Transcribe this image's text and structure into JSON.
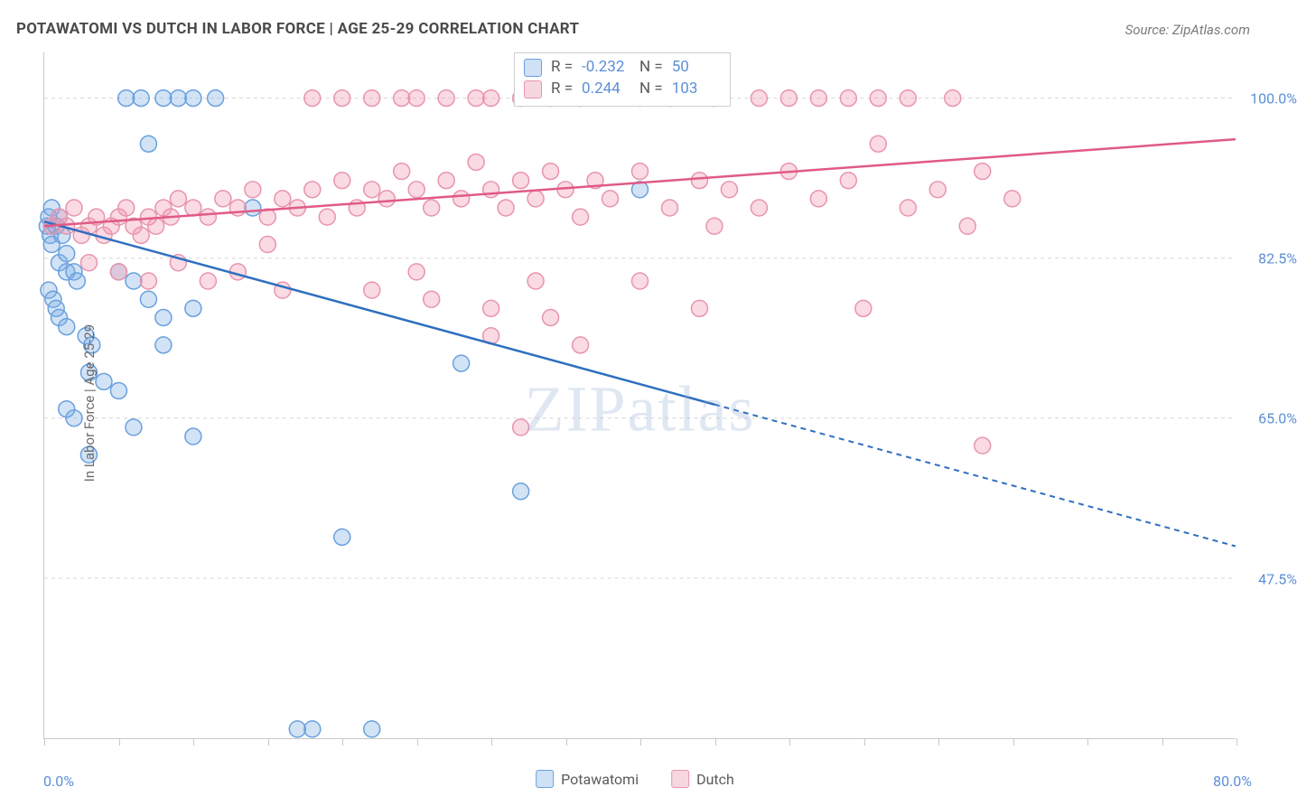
{
  "title": "POTAWATOMI VS DUTCH IN LABOR FORCE | AGE 25-29 CORRELATION CHART",
  "source": "Source: ZipAtlas.com",
  "ylabel": "In Labor Force | Age 25-29",
  "watermark": "ZIPatlas",
  "chart": {
    "type": "scatter",
    "xlim": [
      0,
      80
    ],
    "ylim": [
      30,
      105
    ],
    "x_ticks": [
      0,
      5,
      10,
      15,
      20,
      25,
      30,
      35,
      40,
      45,
      50,
      55,
      60,
      65,
      70,
      75,
      80
    ],
    "y_gridlines": [
      47.5,
      65.0,
      82.5,
      100.0
    ],
    "y_tick_labels": [
      "47.5%",
      "65.0%",
      "82.5%",
      "100.0%"
    ],
    "xmin_label": "0.0%",
    "xmax_label": "80.0%",
    "background_color": "#ffffff",
    "grid_color": "#d6d6d6",
    "series": [
      {
        "name": "Potawatomi",
        "color_fill": "rgba(127,175,230,0.35)",
        "color_stroke": "#6aa0dd",
        "swatch_fill": "#cfe1f5",
        "swatch_border": "#6aa0dd",
        "line_color": "#2f6fc0",
        "r_value": "-0.232",
        "n_value": "50",
        "trend": {
          "x1": 0,
          "y1": 86.5,
          "x2_solid": 45,
          "y2_solid": 66.5,
          "x2": 80,
          "y2": 51.0
        },
        "marker_radius": 9,
        "points": [
          [
            0.2,
            86
          ],
          [
            0.3,
            87
          ],
          [
            0.4,
            85
          ],
          [
            0.5,
            88
          ],
          [
            0.5,
            84
          ],
          [
            0.8,
            86
          ],
          [
            1.0,
            87
          ],
          [
            1.2,
            85
          ],
          [
            1.0,
            82
          ],
          [
            1.5,
            83
          ],
          [
            1.5,
            81
          ],
          [
            2.0,
            81
          ],
          [
            2.2,
            80
          ],
          [
            0.3,
            79
          ],
          [
            0.6,
            78
          ],
          [
            0.8,
            77
          ],
          [
            1.0,
            76
          ],
          [
            1.5,
            75
          ],
          [
            2.8,
            74
          ],
          [
            3.2,
            73
          ],
          [
            5.0,
            81
          ],
          [
            6.0,
            80
          ],
          [
            7.0,
            78
          ],
          [
            8.0,
            76
          ],
          [
            10.0,
            77
          ],
          [
            8.0,
            73
          ],
          [
            3.0,
            70
          ],
          [
            4.0,
            69
          ],
          [
            5.0,
            68
          ],
          [
            1.5,
            66
          ],
          [
            2.0,
            65
          ],
          [
            6.0,
            64
          ],
          [
            10.0,
            63
          ],
          [
            3.0,
            61
          ],
          [
            5.5,
            100
          ],
          [
            6.5,
            100
          ],
          [
            8.0,
            100
          ],
          [
            9.0,
            100
          ],
          [
            10.0,
            100
          ],
          [
            11.5,
            100
          ],
          [
            7.0,
            95
          ],
          [
            14.0,
            88
          ],
          [
            40.0,
            90
          ],
          [
            28.0,
            71
          ],
          [
            32.0,
            57
          ],
          [
            20.0,
            52
          ],
          [
            18.0,
            31
          ],
          [
            17.0,
            31
          ],
          [
            22.0,
            31
          ]
        ]
      },
      {
        "name": "Dutch",
        "color_fill": "rgba(240,150,175,0.35)",
        "color_stroke": "#e895ac",
        "swatch_fill": "#f6d7e0",
        "swatch_border": "#e895ac",
        "line_color": "#e05a86",
        "r_value": "0.244",
        "n_value": "103",
        "trend": {
          "x1": 0,
          "y1": 86.0,
          "x2_solid": 80,
          "y2_solid": 95.5,
          "x2": 80,
          "y2": 95.5
        },
        "marker_radius": 9,
        "points": [
          [
            0.5,
            86
          ],
          [
            1.0,
            87
          ],
          [
            1.5,
            86
          ],
          [
            2.0,
            88
          ],
          [
            2.5,
            85
          ],
          [
            3.0,
            86
          ],
          [
            3.5,
            87
          ],
          [
            4.0,
            85
          ],
          [
            4.5,
            86
          ],
          [
            5.0,
            87
          ],
          [
            5.5,
            88
          ],
          [
            6.0,
            86
          ],
          [
            6.5,
            85
          ],
          [
            7.0,
            87
          ],
          [
            7.5,
            86
          ],
          [
            8.0,
            88
          ],
          [
            8.5,
            87
          ],
          [
            9.0,
            89
          ],
          [
            10.0,
            88
          ],
          [
            11.0,
            87
          ],
          [
            12.0,
            89
          ],
          [
            13.0,
            88
          ],
          [
            14.0,
            90
          ],
          [
            15.0,
            87
          ],
          [
            15.0,
            84
          ],
          [
            16.0,
            89
          ],
          [
            17.0,
            88
          ],
          [
            18.0,
            90
          ],
          [
            19.0,
            87
          ],
          [
            20.0,
            91
          ],
          [
            21.0,
            88
          ],
          [
            22.0,
            90
          ],
          [
            23.0,
            89
          ],
          [
            24.0,
            92
          ],
          [
            25.0,
            90
          ],
          [
            26.0,
            88
          ],
          [
            27.0,
            91
          ],
          [
            28.0,
            89
          ],
          [
            29.0,
            93
          ],
          [
            30.0,
            90
          ],
          [
            31.0,
            88
          ],
          [
            32.0,
            91
          ],
          [
            33.0,
            89
          ],
          [
            34.0,
            92
          ],
          [
            35.0,
            90
          ],
          [
            36.0,
            87
          ],
          [
            37.0,
            91
          ],
          [
            38.0,
            89
          ],
          [
            40.0,
            92
          ],
          [
            42.0,
            88
          ],
          [
            44.0,
            91
          ],
          [
            45.0,
            86
          ],
          [
            46.0,
            90
          ],
          [
            48.0,
            88
          ],
          [
            50.0,
            92
          ],
          [
            52.0,
            89
          ],
          [
            54.0,
            91
          ],
          [
            56.0,
            95
          ],
          [
            58.0,
            88
          ],
          [
            60.0,
            90
          ],
          [
            62.0,
            86
          ],
          [
            63.0,
            92
          ],
          [
            65.0,
            89
          ],
          [
            18.0,
            100
          ],
          [
            20.0,
            100
          ],
          [
            22.0,
            100
          ],
          [
            24.0,
            100
          ],
          [
            25.0,
            100
          ],
          [
            27.0,
            100
          ],
          [
            29.0,
            100
          ],
          [
            30.0,
            100
          ],
          [
            32.0,
            100
          ],
          [
            34.0,
            100
          ],
          [
            36.0,
            100
          ],
          [
            40.0,
            100
          ],
          [
            42.0,
            100
          ],
          [
            45.0,
            100
          ],
          [
            48.0,
            100
          ],
          [
            50.0,
            100
          ],
          [
            52.0,
            100
          ],
          [
            54.0,
            100
          ],
          [
            56.0,
            100
          ],
          [
            58.0,
            100
          ],
          [
            61.0,
            100
          ],
          [
            3.0,
            82
          ],
          [
            5.0,
            81
          ],
          [
            7.0,
            80
          ],
          [
            9.0,
            82
          ],
          [
            11.0,
            80
          ],
          [
            13.0,
            81
          ],
          [
            16.0,
            79
          ],
          [
            22.0,
            79
          ],
          [
            26.0,
            78
          ],
          [
            30.0,
            77
          ],
          [
            34.0,
            76
          ],
          [
            44.0,
            77
          ],
          [
            55.0,
            77
          ],
          [
            25.0,
            81
          ],
          [
            33.0,
            80
          ],
          [
            40.0,
            80
          ],
          [
            30.0,
            74
          ],
          [
            36.0,
            73
          ],
          [
            32.0,
            64
          ],
          [
            63.0,
            62
          ]
        ]
      }
    ]
  },
  "legend": {
    "items": [
      {
        "label": "Potawatomi"
      },
      {
        "label": "Dutch"
      }
    ]
  }
}
